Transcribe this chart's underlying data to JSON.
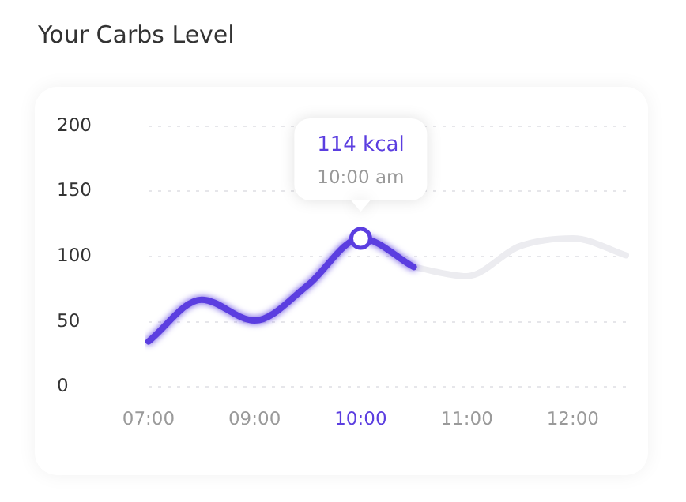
{
  "chart_data": {
    "type": "line",
    "title": "Your Carbs Level",
    "categories": [
      "07:00",
      null,
      "09:00",
      null,
      "10:00",
      null,
      "11:00",
      null,
      "12:00",
      null
    ],
    "series": [
      {
        "color": "#5b3ee0",
        "values": [
          35,
          67,
          51,
          78,
          114,
          92,
          null,
          null,
          null,
          null
        ]
      },
      {
        "color": "#ececf0",
        "values": [
          null,
          null,
          null,
          null,
          null,
          92,
          85,
          108,
          114,
          101
        ]
      }
    ],
    "ylim": [
      0,
      200
    ],
    "yticks": [
      0,
      50,
      100,
      150,
      200
    ],
    "grid": "y",
    "legend": false,
    "marker": "none",
    "line_style": "solid",
    "annotations": [
      "114 kcal",
      "10:00 am"
    ]
  }
}
